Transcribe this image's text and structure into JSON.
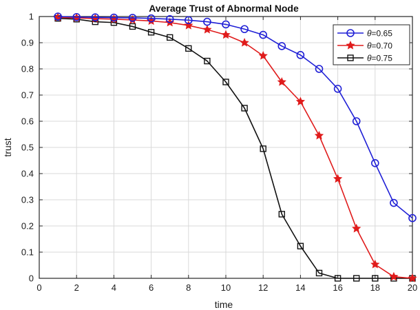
{
  "chart_data": {
    "type": "line",
    "title": "Average Trust of Abnormal Node",
    "xlabel": "time",
    "ylabel": "trust",
    "xlim": [
      0,
      20
    ],
    "ylim": [
      0,
      1
    ],
    "xticks": [
      "0",
      "2",
      "4",
      "6",
      "8",
      "10",
      "12",
      "14",
      "16",
      "18",
      "20"
    ],
    "yticks": [
      "0",
      "0.1",
      "0.2",
      "0.3",
      "0.4",
      "0.5",
      "0.6",
      "0.7",
      "0.8",
      "0.9",
      "1"
    ],
    "grid": true,
    "legend_position": "top-right",
    "x": [
      1,
      2,
      3,
      4,
      5,
      6,
      7,
      8,
      9,
      10,
      11,
      12,
      13,
      14,
      15,
      16,
      17,
      18,
      19,
      20
    ],
    "series": [
      {
        "name": "θ=0.65",
        "legend_symbol": "θ",
        "legend_value": "=0.65",
        "color": "#1f1fd6",
        "marker": "circle",
        "values": [
          1.0,
          0.998,
          0.997,
          0.996,
          0.995,
          0.993,
          0.99,
          0.986,
          0.98,
          0.97,
          0.952,
          0.93,
          0.887,
          0.853,
          0.8,
          0.724,
          0.6,
          0.44,
          0.288,
          0.23
        ]
      },
      {
        "name": "θ=0.70",
        "legend_symbol": "θ",
        "legend_value": "=0.70",
        "color": "#e01b1b",
        "marker": "star",
        "values": [
          0.997,
          0.995,
          0.992,
          0.99,
          0.987,
          0.983,
          0.977,
          0.966,
          0.95,
          0.93,
          0.9,
          0.85,
          0.75,
          0.675,
          0.545,
          0.38,
          0.19,
          0.053,
          0.006,
          0.0
        ]
      },
      {
        "name": "θ=0.75",
        "legend_symbol": "θ",
        "legend_value": "=0.75",
        "color": "#111111",
        "marker": "square",
        "values": [
          0.993,
          0.99,
          0.98,
          0.977,
          0.962,
          0.94,
          0.92,
          0.878,
          0.83,
          0.75,
          0.65,
          0.495,
          0.245,
          0.123,
          0.02,
          0.0,
          0.0,
          0.0,
          0.0,
          0.0
        ]
      }
    ]
  }
}
